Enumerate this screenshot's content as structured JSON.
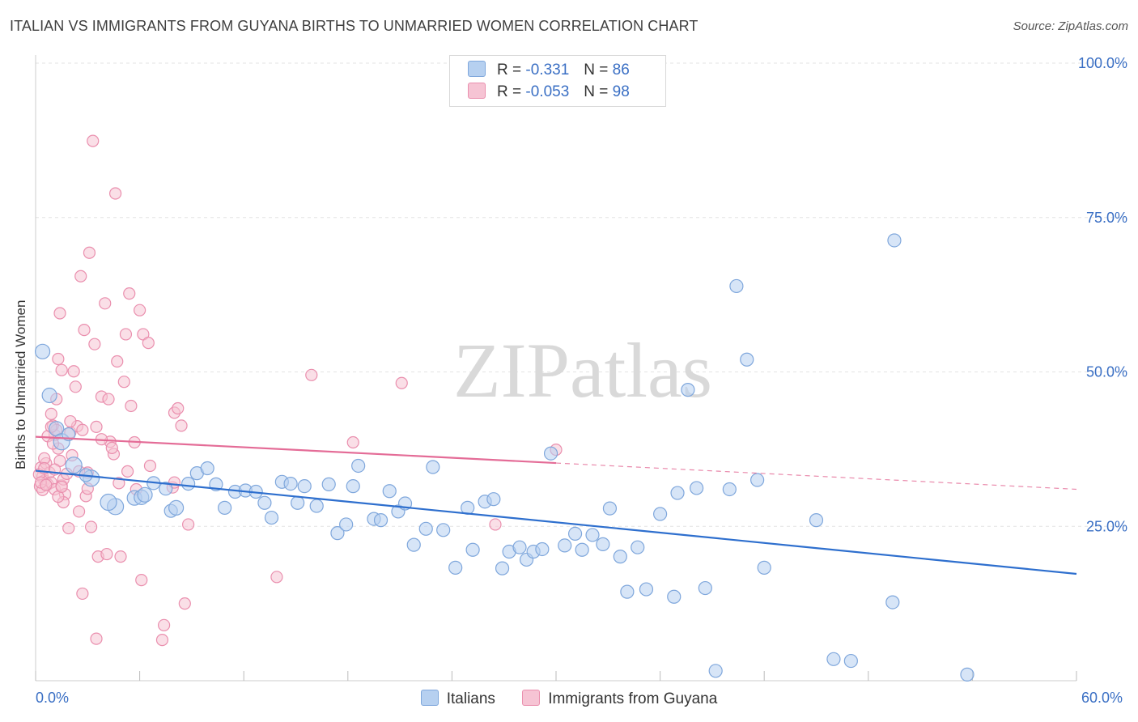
{
  "chart_data": {
    "type": "scatter",
    "title": "ITALIAN VS IMMIGRANTS FROM GUYANA BIRTHS TO UNMARRIED WOMEN CORRELATION CHART",
    "source_label": "Source:",
    "source_value": "ZipAtlas.com",
    "ylabel": "Births to Unmarried Women",
    "xlim": [
      0,
      60
    ],
    "ylim": [
      0,
      100
    ],
    "x_tick_labels": [
      "0.0%",
      "60.0%"
    ],
    "y_tick_labels": [
      "100.0%",
      "75.0%",
      "50.0%",
      "25.0%"
    ],
    "y_tick_values": [
      100,
      75,
      50,
      25
    ],
    "grid": true,
    "watermark": "ZIPatlas",
    "legend": {
      "rows": [
        {
          "r_label": "R =",
          "r_value": "-0.331",
          "n_label": "N =",
          "n_value": "86"
        },
        {
          "r_label": "R =",
          "r_value": "-0.053",
          "n_label": "N =",
          "n_value": "98"
        }
      ]
    },
    "colors": {
      "blue_fill": "#b6d0f0",
      "blue_stroke": "#7fa7dc",
      "blue_line": "#2e6fce",
      "pink_fill": "#f6c4d4",
      "pink_stroke": "#ea8fae",
      "pink_line": "#e46c97",
      "axis_text": "#3a6fc4"
    },
    "series": [
      {
        "name": "Italians",
        "trend": {
          "x0": 0,
          "y0": 34.0,
          "x1": 60,
          "y1": 17.3,
          "solid_to": 60
        },
        "points": [
          [
            0.4,
            53.3,
            9
          ],
          [
            0.8,
            46.2,
            9
          ],
          [
            1.2,
            40.8,
            9
          ],
          [
            1.5,
            38.7,
            10
          ],
          [
            2.2,
            34.9,
            10
          ],
          [
            3.2,
            32.8,
            10
          ],
          [
            2.9,
            33.3,
            8
          ],
          [
            4.6,
            28.2,
            10
          ],
          [
            4.2,
            28.9,
            10
          ],
          [
            5.7,
            29.6,
            9
          ],
          [
            6.1,
            29.7,
            9
          ],
          [
            6.3,
            30.1,
            9
          ],
          [
            6.8,
            32.0,
            8
          ],
          [
            7.5,
            31.1,
            8
          ],
          [
            7.8,
            27.5,
            8
          ],
          [
            8.1,
            28.0,
            9
          ],
          [
            8.8,
            31.9,
            8
          ],
          [
            9.3,
            33.6,
            8
          ],
          [
            9.9,
            34.4,
            8
          ],
          [
            10.4,
            31.8,
            8
          ],
          [
            10.9,
            28.0,
            8
          ],
          [
            11.5,
            30.6,
            8
          ],
          [
            12.1,
            30.8,
            8
          ],
          [
            12.7,
            30.6,
            8
          ],
          [
            13.2,
            28.8,
            8
          ],
          [
            13.6,
            26.4,
            8
          ],
          [
            14.2,
            32.2,
            8
          ],
          [
            14.7,
            31.9,
            8
          ],
          [
            15.1,
            28.8,
            8
          ],
          [
            15.5,
            31.5,
            8
          ],
          [
            16.2,
            28.3,
            8
          ],
          [
            16.9,
            31.8,
            8
          ],
          [
            17.4,
            23.9,
            8
          ],
          [
            17.9,
            25.3,
            8
          ],
          [
            18.3,
            31.5,
            8
          ],
          [
            18.6,
            34.8,
            8
          ],
          [
            19.5,
            26.2,
            8
          ],
          [
            19.9,
            26.0,
            8
          ],
          [
            20.4,
            30.7,
            8
          ],
          [
            20.9,
            27.4,
            8
          ],
          [
            21.3,
            28.7,
            8
          ],
          [
            21.8,
            22.0,
            8
          ],
          [
            22.5,
            24.6,
            8
          ],
          [
            22.9,
            34.6,
            8
          ],
          [
            23.5,
            24.4,
            8
          ],
          [
            24.2,
            18.3,
            8
          ],
          [
            24.9,
            28.0,
            8
          ],
          [
            25.2,
            21.2,
            8
          ],
          [
            25.9,
            29.0,
            8
          ],
          [
            26.4,
            29.4,
            8
          ],
          [
            26.9,
            18.2,
            8
          ],
          [
            27.3,
            20.9,
            8
          ],
          [
            27.9,
            21.6,
            8
          ],
          [
            28.3,
            19.6,
            8
          ],
          [
            28.7,
            20.9,
            8
          ],
          [
            29.2,
            21.3,
            8
          ],
          [
            29.7,
            36.8,
            8
          ],
          [
            30.5,
            21.9,
            8
          ],
          [
            31.1,
            23.8,
            8
          ],
          [
            31.5,
            21.2,
            8
          ],
          [
            32.1,
            23.6,
            8
          ],
          [
            32.7,
            22.1,
            8
          ],
          [
            33.1,
            27.9,
            8
          ],
          [
            33.7,
            20.1,
            8
          ],
          [
            34.1,
            14.4,
            8
          ],
          [
            34.7,
            21.6,
            8
          ],
          [
            35.2,
            14.8,
            8
          ],
          [
            36.0,
            27.0,
            8
          ],
          [
            36.8,
            13.6,
            8
          ],
          [
            37.0,
            30.4,
            8
          ],
          [
            37.6,
            47.1,
            8
          ],
          [
            38.1,
            31.2,
            8
          ],
          [
            38.6,
            15.0,
            8
          ],
          [
            39.2,
            1.6,
            8
          ],
          [
            40.0,
            31.0,
            8
          ],
          [
            40.4,
            63.9,
            8
          ],
          [
            41.0,
            52.0,
            8
          ],
          [
            41.6,
            32.5,
            8
          ],
          [
            42.0,
            18.3,
            8
          ],
          [
            45.0,
            26.0,
            8
          ],
          [
            46.0,
            3.5,
            8
          ],
          [
            47.0,
            3.2,
            8
          ],
          [
            49.5,
            71.3,
            8
          ],
          [
            49.4,
            12.7,
            8
          ],
          [
            53.7,
            1.0,
            8
          ],
          [
            1.9,
            39.9,
            8
          ]
        ]
      },
      {
        "name": "Immigrants from Guyana",
        "trend": {
          "x0": 0,
          "y0": 39.5,
          "x1": 60,
          "y1": 31.0,
          "solid_to": 30.0
        },
        "points": [
          [
            0.3,
            34.5,
            7
          ],
          [
            0.4,
            33.1,
            7
          ],
          [
            0.5,
            32.4,
            7
          ],
          [
            0.6,
            35.2,
            7
          ],
          [
            0.3,
            31.5,
            8
          ],
          [
            0.7,
            31.8,
            7
          ],
          [
            0.8,
            33.7,
            7
          ],
          [
            0.4,
            30.9,
            7
          ],
          [
            0.5,
            36.0,
            7
          ],
          [
            0.9,
            32.1,
            7
          ],
          [
            1.0,
            41.3,
            7
          ],
          [
            1.1,
            39.8,
            7
          ],
          [
            1.2,
            40.6,
            7
          ],
          [
            0.9,
            43.2,
            7
          ],
          [
            1.3,
            37.6,
            7
          ],
          [
            1.4,
            35.6,
            7
          ],
          [
            1.1,
            31.0,
            7
          ],
          [
            1.5,
            31.6,
            7
          ],
          [
            1.6,
            32.6,
            7
          ],
          [
            1.2,
            45.6,
            7
          ],
          [
            1.3,
            52.1,
            7
          ],
          [
            1.4,
            59.5,
            7
          ],
          [
            1.5,
            50.3,
            7
          ],
          [
            1.7,
            30.2,
            7
          ],
          [
            1.8,
            33.5,
            7
          ],
          [
            1.9,
            24.7,
            7
          ],
          [
            2.0,
            40.2,
            7
          ],
          [
            2.1,
            36.5,
            7
          ],
          [
            2.2,
            50.1,
            7
          ],
          [
            2.3,
            47.6,
            7
          ],
          [
            2.4,
            41.2,
            7
          ],
          [
            2.5,
            27.4,
            7
          ],
          [
            2.6,
            65.5,
            7
          ],
          [
            2.7,
            14.1,
            7
          ],
          [
            2.8,
            56.8,
            7
          ],
          [
            2.9,
            29.9,
            7
          ],
          [
            3.0,
            33.7,
            7
          ],
          [
            3.1,
            69.3,
            7
          ],
          [
            3.2,
            24.9,
            7
          ],
          [
            3.4,
            54.5,
            7
          ],
          [
            3.5,
            41.1,
            7
          ],
          [
            3.6,
            20.1,
            7
          ],
          [
            3.5,
            6.8,
            7
          ],
          [
            3.3,
            87.4,
            7
          ],
          [
            3.8,
            46.0,
            7
          ],
          [
            4.0,
            61.1,
            7
          ],
          [
            4.1,
            20.5,
            7
          ],
          [
            4.2,
            45.6,
            7
          ],
          [
            4.3,
            38.7,
            7
          ],
          [
            4.5,
            36.7,
            7
          ],
          [
            4.6,
            78.9,
            7
          ],
          [
            4.7,
            51.7,
            7
          ],
          [
            4.8,
            32.0,
            7
          ],
          [
            4.9,
            20.1,
            7
          ],
          [
            5.1,
            48.4,
            7
          ],
          [
            5.2,
            56.1,
            7
          ],
          [
            5.4,
            62.7,
            7
          ],
          [
            5.5,
            44.5,
            7
          ],
          [
            5.7,
            38.6,
            7
          ],
          [
            6.0,
            60.0,
            7
          ],
          [
            6.1,
            16.3,
            7
          ],
          [
            6.2,
            56.1,
            7
          ],
          [
            6.5,
            54.7,
            7
          ],
          [
            6.6,
            34.8,
            7
          ],
          [
            7.4,
            9.0,
            7
          ],
          [
            7.3,
            6.6,
            7
          ],
          [
            7.9,
            31.3,
            7
          ],
          [
            8.0,
            43.4,
            7
          ],
          [
            8.2,
            44.1,
            7
          ],
          [
            8.4,
            41.3,
            7
          ],
          [
            8.6,
            12.5,
            7
          ],
          [
            8.8,
            25.3,
            7
          ],
          [
            8.0,
            32.1,
            7
          ],
          [
            13.9,
            16.8,
            7
          ],
          [
            15.9,
            49.5,
            7
          ],
          [
            18.3,
            38.6,
            7
          ],
          [
            21.1,
            48.2,
            7
          ],
          [
            26.5,
            25.3,
            7
          ],
          [
            30.0,
            37.4,
            7
          ],
          [
            1.6,
            28.9,
            7
          ],
          [
            0.2,
            33.4,
            7
          ],
          [
            0.3,
            32.1,
            7
          ],
          [
            0.5,
            34.4,
            7
          ],
          [
            0.6,
            31.7,
            7
          ],
          [
            0.7,
            39.6,
            7
          ],
          [
            0.9,
            41.1,
            7
          ],
          [
            1.0,
            38.4,
            7
          ],
          [
            1.1,
            34.2,
            7
          ],
          [
            1.3,
            29.8,
            7
          ],
          [
            1.5,
            31.4,
            7
          ],
          [
            2.0,
            42.0,
            7
          ],
          [
            2.5,
            33.9,
            7
          ],
          [
            2.7,
            40.6,
            7
          ],
          [
            3.0,
            31.1,
            7
          ],
          [
            3.8,
            39.1,
            7
          ],
          [
            4.4,
            37.7,
            7
          ],
          [
            5.3,
            33.9,
            7
          ],
          [
            5.8,
            31.0,
            7
          ]
        ]
      }
    ]
  }
}
